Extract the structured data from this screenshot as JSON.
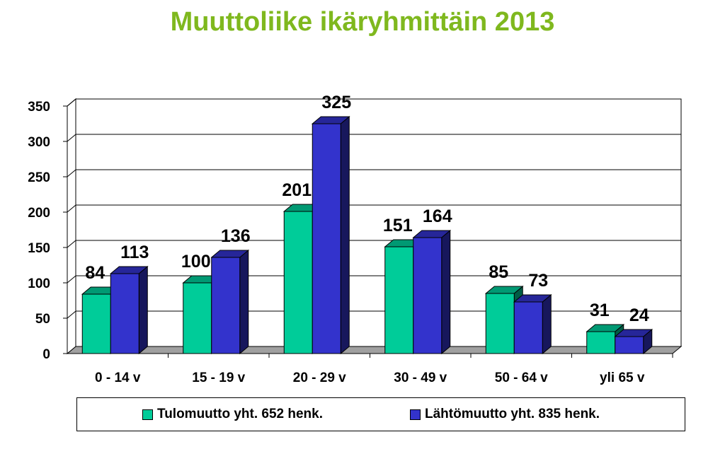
{
  "chart_data": {
    "type": "bar",
    "title": "Muuttoliike ikäryhmittäin 2013",
    "categories": [
      "0 - 14 v",
      "15 - 19 v",
      "20 - 29 v",
      "30 - 49 v",
      "50 - 64 v",
      "yli 65 v"
    ],
    "series": [
      {
        "name": "Tulomuutto yht. 652 henk.",
        "values": [
          84,
          100,
          201,
          151,
          85,
          31
        ],
        "color": "#00cc99"
      },
      {
        "name": "Lähtömuutto yht. 835 henk.",
        "values": [
          113,
          136,
          325,
          164,
          73,
          24
        ],
        "color": "#3333cc"
      }
    ],
    "ylim": [
      0,
      350
    ],
    "yticks": [
      0,
      50,
      100,
      150,
      200,
      250,
      300,
      350
    ],
    "grid": true,
    "legend_position": "bottom",
    "three_d": true
  }
}
